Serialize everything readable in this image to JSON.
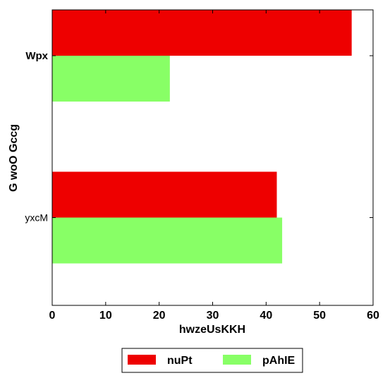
{
  "chart_data": {
    "type": "bar",
    "orientation": "horizontal",
    "categories": [
      "Wpx",
      "yxcM"
    ],
    "category_label_bold": [
      true,
      false
    ],
    "series": [
      {
        "name": "nuPt",
        "values": [
          56,
          42
        ],
        "color": "#ee0000"
      },
      {
        "name": "pAhIE",
        "values": [
          22,
          43
        ],
        "color": "#88ff66"
      }
    ],
    "xlabel": "hwzeUsKKH",
    "ylabel": "G woO Gccg",
    "xlim": [
      0,
      60
    ],
    "xticks": [
      0,
      10,
      20,
      30,
      40,
      50,
      60
    ],
    "grid": false,
    "legend": {
      "placement": "bottom-center",
      "columns": 2
    }
  }
}
